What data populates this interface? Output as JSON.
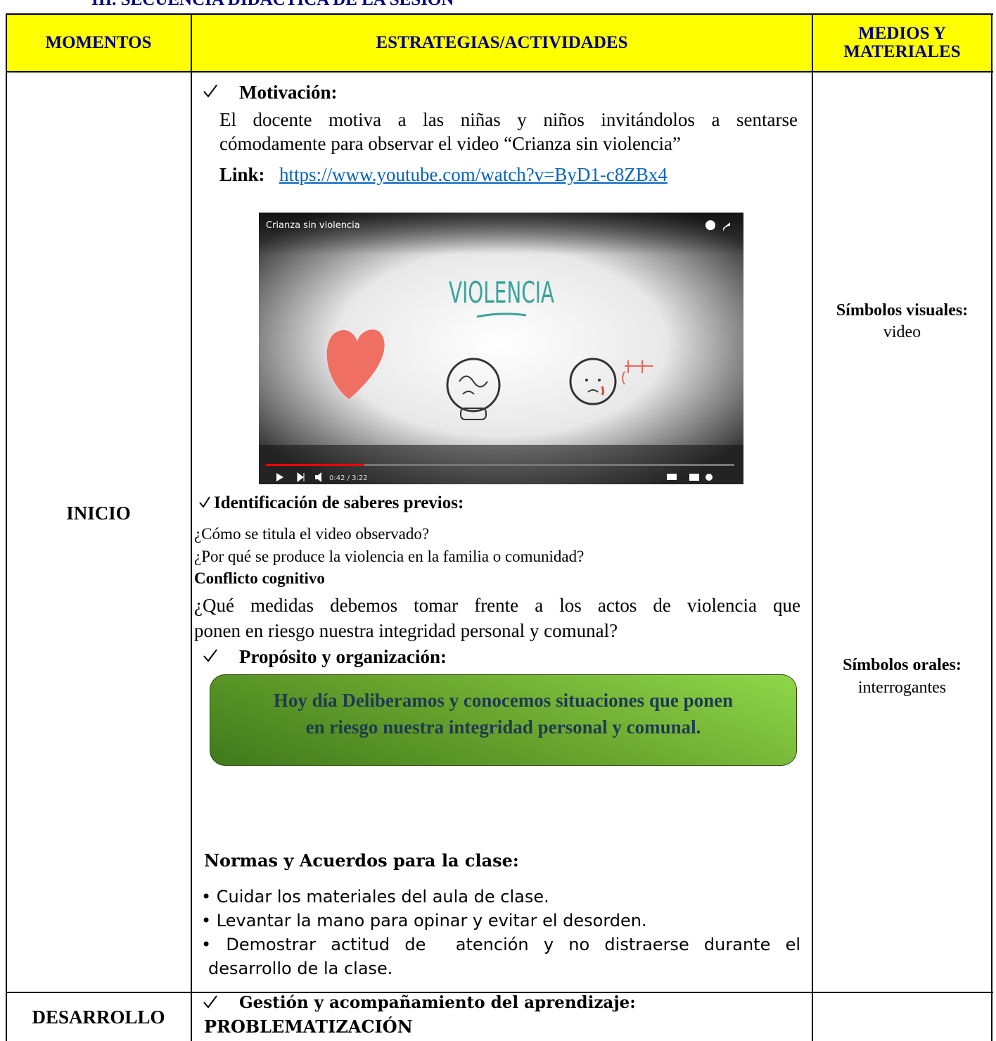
{
  "section_title": "III. SECUENCIA DIDÁCTICA DE LA SESIÓN",
  "table": {
    "headers": [
      "MOMENTOS",
      "ESTRATEGIAS/ACTIVIDADES",
      "MEDIOS Y MATERIALES"
    ],
    "inicio": {
      "moment": "INICIO",
      "motivacion": {
        "heading": "Motivación:",
        "lines": [
          "El docente motiva a las niñas y niños invitándolos a sentarse",
          "cómodamente para observar el video “Crianza sin violencia”"
        ],
        "link_label": "Link:",
        "link_url": "https://www.youtube.com/watch?v=ByD1-c8ZBx4",
        "video": {
          "title": "Crianza sin violencia",
          "frame_text": "VIOLENCIA",
          "time": "0:42 / 3:22"
        }
      },
      "saberes": {
        "heading": "Identificación de saberes previos:",
        "questions": [
          "¿Cómo se titula el video observado?",
          "¿Por qué se produce la violencia en la familia o comunidad?"
        ],
        "conflict_heading": "Conflicto cognitivo",
        "conflict_lines": [
          "¿Qué medidas debemos tomar frente a los actos de violencia que",
          "ponen en riesgo nuestra integridad personal y comunal?"
        ]
      },
      "proposito": {
        "heading": "Propósito y organización:",
        "box_lines": [
          "Hoy día Deliberamos y conocemos situaciones que ponen",
          "en riesgo nuestra integridad personal y comunal."
        ]
      },
      "normas": {
        "heading": "Normas y Acuerdos para la clase:",
        "items": [
          "• Cuidar los materiales del aula de clase.",
          "• Levantar la mano para opinar y evitar el desorden.",
          "• Demostrar actitud de  atención y no distraerse durante el",
          "desarrollo de la clase."
        ]
      },
      "materials": [
        {
          "title": "Símbolos visuales:",
          "text": "video"
        },
        {
          "title": "Símbolos orales:",
          "text": "interrogantes"
        }
      ]
    },
    "desarrollo": {
      "moment": "DESARROLLO",
      "heading": "Gestión y acompañamiento del aprendizaje:",
      "subheading": "PROBLEMATIZACIÓN"
    }
  }
}
